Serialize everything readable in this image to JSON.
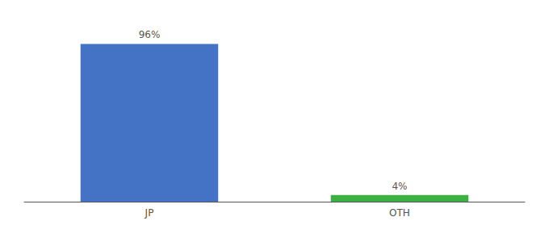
{
  "chart_data": {
    "type": "bar",
    "categories": [
      "JP",
      "OTH"
    ],
    "values": [
      96,
      4
    ],
    "colors": [
      "#4472c4",
      "#3cb043"
    ],
    "value_labels": [
      "96%",
      "4%"
    ],
    "data_labels": true,
    "ylim": [
      0,
      108
    ],
    "grid": false,
    "tick_labels": "x"
  }
}
